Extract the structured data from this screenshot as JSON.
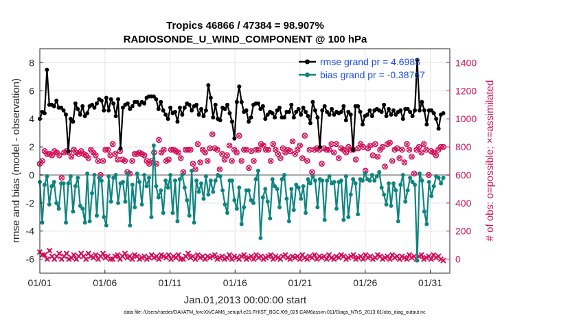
{
  "chart_data": {
    "type": "line",
    "title": "Tropics 46866 / 47384 = 98.907%",
    "subtitle": "RADIOSONDE_U_WIND_COMPONENT @ 100 hPa",
    "xlabel": "Jan.01,2013 00:00:00 start",
    "ylabel": "rmse and bias (model - observation)",
    "y2label": "# of obs: o=possible; ×=assimilated",
    "footer": "data file: /Users/raeder/DAI/ATM_forcXX/CAM6_setup/f.e21.FHIST_BGC.f09_025.CAM6assim.011/Diags_NTrS_2013-01/obs_diag_output.nc",
    "xlim": [
      0,
      31.5
    ],
    "ylim": [
      -7,
      9
    ],
    "y2lim": [
      -100,
      1500
    ],
    "x_ticks": [
      0,
      5,
      10,
      15,
      20,
      25,
      30
    ],
    "x_tick_labels": [
      "01/01",
      "01/06",
      "01/11",
      "01/16",
      "01/21",
      "01/26",
      "01/31"
    ],
    "y_ticks": [
      -6,
      -4,
      -2,
      0,
      2,
      4,
      6,
      8
    ],
    "y2_ticks": [
      0,
      200,
      400,
      600,
      800,
      1000,
      1200,
      1400
    ],
    "grid": true,
    "legend_position": "top-right",
    "legend": [
      "rmse grand pr = 4.6983",
      "bias grand pr = -0.38767"
    ],
    "series": [
      {
        "name": "rmse grand pr = 4.6983",
        "color": "#000000",
        "axis": "left",
        "values": [
          4.0,
          4.5,
          4.4,
          7.5,
          5.0,
          5.0,
          4.9,
          5.3,
          4.8,
          4.8,
          4.6,
          4.3,
          1.7,
          4.0,
          3.8,
          5.1,
          4.7,
          4.3,
          4.9,
          4.2,
          4.4,
          4.9,
          5.0,
          4.8,
          5.1,
          5.4,
          5.3,
          4.6,
          5.5,
          4.6,
          5.4,
          5.1,
          4.2,
          5.4,
          1.9,
          4.8,
          5.0,
          5.1,
          4.7,
          4.9,
          5.2,
          5.2,
          5.0,
          5.2,
          5.1,
          5.5,
          5.6,
          5.6,
          5.6,
          5.4,
          4.7,
          5.2,
          4.6,
          4.3,
          4.0,
          4.8,
          4.4,
          4.5,
          3.8,
          4.8,
          4.3,
          4.8,
          5.1,
          5.0,
          4.6,
          4.9,
          5.0,
          4.3,
          4.7,
          4.2,
          4.6,
          6.4,
          5.5,
          4.1,
          5.0,
          4.0,
          3.9,
          4.8,
          4.7,
          5.0,
          4.4,
          3.8,
          2.6,
          5.2,
          6.3,
          5.2,
          4.5,
          4.6,
          3.8,
          4.1,
          5.0,
          5.1,
          5.1,
          4.7,
          4.9,
          4.0,
          4.3,
          4.5,
          4.4,
          4.1,
          4.6,
          4.8,
          4.1,
          4.1,
          4.5,
          4.5,
          5.0,
          4.1,
          4.5,
          4.7,
          4.3,
          4.8,
          4.5,
          4.2,
          3.7,
          5.2,
          4.6,
          4.1,
          2.0,
          4.6,
          4.9,
          4.5,
          4.3,
          4.7,
          4.3,
          4.5,
          4.4,
          4.5,
          4.9,
          3.9,
          4.5,
          4.3,
          1.8,
          4.9,
          4.9,
          4.5,
          3.6,
          4.2,
          4.3,
          4.6,
          4.2,
          4.6,
          4.7,
          4.6,
          4.5,
          5.0,
          4.2,
          4.7,
          4.3,
          4.6,
          4.3,
          4.5,
          4.6,
          4.0,
          4.7,
          4.7,
          4.5,
          4.2,
          4.6,
          8.2,
          4.6,
          5.2,
          4.6,
          3.6,
          4.6,
          4.6,
          4.4,
          4.0,
          3.3,
          4.3,
          4.4
        ]
      },
      {
        "name": "bias grand pr = -0.38767",
        "color": "#0e857f",
        "axis": "left",
        "values": [
          -0.5,
          -3.4,
          -0.7,
          -0.1,
          -2.1,
          -0.8,
          -0.5,
          -2.0,
          -2.4,
          -0.6,
          -0.6,
          -3.4,
          -0.6,
          -0.1,
          -2.6,
          -0.8,
          -0.2,
          -2.2,
          -2.4,
          -3.4,
          0.1,
          -3.3,
          -1.3,
          0.0,
          -2.9,
          -0.2,
          -0.4,
          -3.0,
          -3.6,
          -0.1,
          -1.9,
          -0.2,
          0.0,
          -2.0,
          -0.6,
          -0.5,
          -1.9,
          0.1,
          -3.6,
          -0.7,
          -2.3,
          0.1,
          -0.5,
          -2.1,
          0.0,
          -0.8,
          -0.2,
          -3.0,
          2.1,
          -0.8,
          -1.6,
          -1.1,
          -2.7,
          -0.4,
          -0.9,
          0.0,
          -2.7,
          -0.4,
          -3.3,
          -0.3,
          0.0,
          -0.9,
          -1.8,
          -2.9,
          0.3,
          -3.4,
          -0.4,
          -1.2,
          -0.6,
          -1.7,
          -0.1,
          -1.4,
          -0.4,
          -1.2,
          -0.4,
          0.0,
          -0.1,
          -1.1,
          -2.1,
          -2.7,
          -0.4,
          -0.4,
          -1.8,
          -2.4,
          -0.9,
          -3.5,
          -2.3,
          -1.1,
          -1.1,
          -1.8,
          -2.0,
          -0.3,
          0.3,
          -4.5,
          -1.6,
          -1.0,
          -1.9,
          -3.1,
          -0.3,
          -0.8,
          -1.0,
          -2.3,
          -0.3,
          0.0,
          -1.7,
          -3.3,
          -1.0,
          -2.5,
          -0.7,
          -0.9,
          -1.7,
          -0.8,
          -2.7,
          -0.3,
          -0.6,
          -0.1,
          -0.4,
          -2.3,
          -0.3,
          -0.4,
          -3.2,
          -0.4,
          -0.1,
          -0.6,
          -0.5,
          -2.4,
          -0.5,
          -0.4,
          -3.2,
          -0.1,
          -3.0,
          -1.4,
          -0.3,
          -0.6,
          -2.8,
          -0.3,
          -0.4,
          0.1,
          -0.3,
          -0.4,
          0.0,
          -0.4,
          -0.1,
          0.2,
          -0.9,
          -1.4,
          -2.1,
          -0.6,
          -2.2,
          -0.6,
          -1.1,
          -3.3,
          -0.7,
          0.0,
          -1.9,
          -1.1,
          -0.2,
          -0.5,
          -0.7,
          -6.1,
          0.1,
          -0.4,
          -2.6,
          -3.5,
          -0.5,
          -1.5,
          -0.8,
          -0.1,
          -0.2,
          -0.6,
          -0.2
        ]
      },
      {
        "name": "# of obs possible",
        "color": "#d0105a",
        "marker": "o",
        "axis": "right",
        "values": [
          680,
          700,
          770,
          750,
          750,
          740,
          770,
          760,
          740,
          580,
          760,
          770,
          760,
          730,
          780,
          760,
          750,
          770,
          750,
          740,
          720,
          780,
          760,
          740,
          700,
          600,
          700,
          780,
          780,
          740,
          820,
          750,
          710,
          770,
          710,
          700,
          620,
          610,
          700,
          750,
          750,
          760,
          750,
          740,
          700,
          680,
          700,
          760,
          680,
          850,
          760,
          780,
          700,
          710,
          780,
          780,
          770,
          760,
          720,
          620,
          780,
          780,
          780,
          680,
          640,
          820,
          690,
          780,
          760,
          700,
          790,
          890,
          790,
          780,
          640,
          750,
          710,
          740,
          810,
          700,
          780,
          760,
          880,
          700,
          780,
          780,
          650,
          770,
          700,
          780,
          780,
          820,
          810,
          780,
          780,
          700,
          820,
          780,
          750,
          720,
          790,
          760,
          780,
          770,
          840,
          750,
          780,
          810,
          720,
          880,
          700,
          780,
          620,
          780,
          790,
          780,
          680,
          790,
          780,
          780,
          820,
          760,
          820,
          720,
          790,
          780,
          760,
          800,
          780,
          780,
          710,
          790,
          820,
          800,
          630,
          790,
          810,
          740,
          820,
          730,
          780,
          800,
          660,
          820,
          830,
          700,
          780,
          790,
          720,
          780,
          690,
          820,
          780,
          730,
          610,
          780,
          800,
          760,
          820,
          780,
          600,
          770,
          760,
          740,
          780,
          800,
          800
        ]
      },
      {
        "name": "# of obs assimilated",
        "color": "#d0105a",
        "marker": "x",
        "axis": "right",
        "values": [
          50,
          30,
          30,
          0,
          60,
          20,
          0,
          20,
          40,
          0,
          20,
          40,
          0,
          10,
          30,
          0,
          20,
          40,
          20,
          0,
          40,
          20,
          10,
          30,
          0,
          20,
          40,
          10,
          20,
          0,
          0,
          20,
          30,
          0,
          20,
          40,
          10,
          20,
          0,
          30,
          20,
          0,
          10,
          20,
          0,
          10,
          30,
          10,
          20,
          0,
          30,
          20,
          10,
          30,
          0,
          20,
          10,
          30,
          0,
          0,
          20,
          40,
          10,
          20,
          0,
          30,
          10,
          20,
          0,
          20,
          10,
          20,
          30,
          0,
          10,
          20,
          0,
          10,
          30,
          0,
          20,
          10,
          0,
          20,
          30,
          0,
          10,
          20,
          0,
          30,
          10,
          20,
          0,
          10,
          20,
          30,
          0,
          20,
          10,
          0,
          20,
          30,
          10,
          0,
          20,
          10,
          20,
          0,
          30,
          10,
          0,
          20,
          10,
          30,
          0,
          20,
          10,
          20,
          0,
          30,
          10,
          0,
          20,
          10,
          30,
          20,
          0,
          10,
          20,
          30,
          0,
          10,
          20,
          0,
          30,
          10,
          20,
          0,
          10,
          30,
          20,
          0,
          10,
          20,
          0,
          30,
          10,
          20,
          0,
          20,
          10,
          0,
          30,
          10,
          20,
          0,
          20,
          30,
          0,
          10,
          20,
          0,
          30,
          10,
          20,
          0,
          -10
        ]
      }
    ]
  }
}
